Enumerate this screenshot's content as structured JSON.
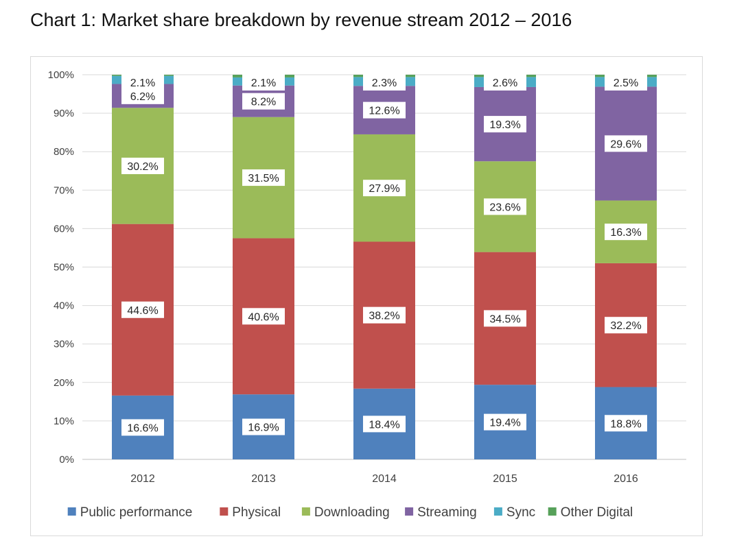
{
  "chart_data": {
    "type": "bar",
    "stacked": true,
    "title": "Chart 1: Market share breakdown by revenue stream 2012 – 2016",
    "xlabel": "",
    "ylabel": "",
    "ylim": [
      0,
      100
    ],
    "yticks": [
      "0%",
      "10%",
      "20%",
      "30%",
      "40%",
      "50%",
      "60%",
      "70%",
      "80%",
      "90%",
      "100%"
    ],
    "categories": [
      "2012",
      "2013",
      "2014",
      "2015",
      "2016"
    ],
    "grid": true,
    "legend": "bottom",
    "series": [
      {
        "name": "Public performance",
        "color": "#4f81bd",
        "values": [
          16.6,
          16.9,
          18.4,
          19.4,
          18.8
        ],
        "labels": [
          "16.6%",
          "16.9%",
          "18.4%",
          "19.4%",
          "18.8%"
        ]
      },
      {
        "name": "Physical",
        "color": "#c0504d",
        "values": [
          44.6,
          40.6,
          38.2,
          34.5,
          32.2
        ],
        "labels": [
          "44.6%",
          "40.6%",
          "38.2%",
          "34.5%",
          "32.2%"
        ]
      },
      {
        "name": "Downloading",
        "color": "#9bbb59",
        "values": [
          30.2,
          31.5,
          27.9,
          23.6,
          16.3
        ],
        "labels": [
          "30.2%",
          "31.5%",
          "27.9%",
          "23.6%",
          "16.3%"
        ]
      },
      {
        "name": "Streaming",
        "color": "#8064a2",
        "values": [
          6.2,
          8.2,
          12.6,
          19.3,
          29.6
        ],
        "labels": [
          "6.2%",
          "8.2%",
          "12.6%",
          "19.3%",
          "29.6%"
        ]
      },
      {
        "name": "Sync",
        "color": "#4bacc6",
        "values": [
          2.1,
          2.1,
          2.3,
          2.6,
          2.5
        ],
        "labels": [
          "2.1%",
          "2.1%",
          "2.3%",
          "2.6%",
          "2.5%"
        ]
      },
      {
        "name": "Other Digital",
        "color": "#57a15a",
        "values": [
          0.3,
          0.7,
          0.6,
          0.6,
          0.6
        ],
        "labels": [
          "",
          "",
          "",
          "",
          ""
        ]
      }
    ]
  }
}
